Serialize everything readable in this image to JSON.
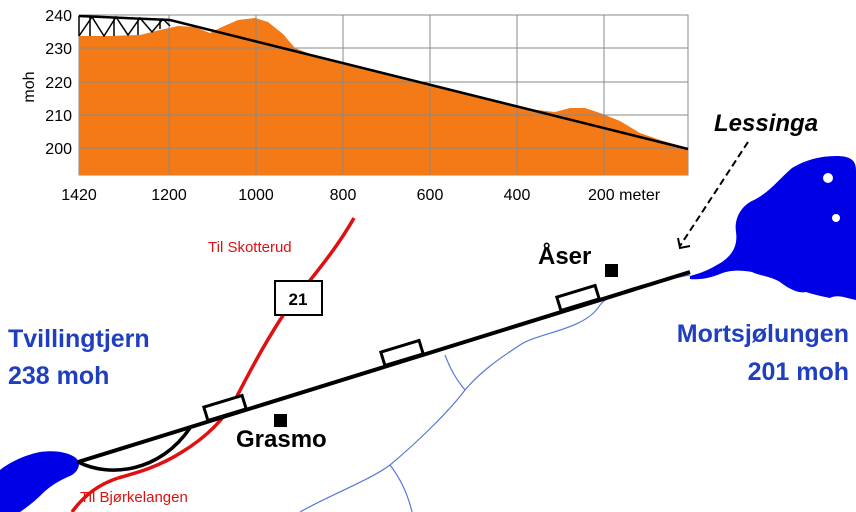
{
  "profile": {
    "y_axis_label": "moh",
    "y_ticks": [
      "240",
      "230",
      "220",
      "210",
      "200"
    ],
    "x_ticks": [
      "1420",
      "1200",
      "1000",
      "800",
      "600",
      "400"
    ],
    "x_last_tick": "200 meter",
    "colors": {
      "terrain": "#f47a18",
      "canal": "#000000",
      "grid": "#888888"
    }
  },
  "map": {
    "lake_west_name": "Tvillingtjern",
    "lake_west_elevation": "238 moh",
    "lake_east_name": "Mortsjølungen",
    "lake_east_elevation": "201 moh",
    "river_label": "Lessinga",
    "place_grasmo": "Grasmo",
    "place_aser": "Åser",
    "road_north_label": "Til Skotterud",
    "road_south_label": "Til Bjørkelangen",
    "road_number": "21",
    "colors": {
      "lake": "#0000e6",
      "lake_text": "#1f3fbf",
      "road": "#e01010",
      "stream": "#5a78d8",
      "canal": "#000000"
    }
  }
}
